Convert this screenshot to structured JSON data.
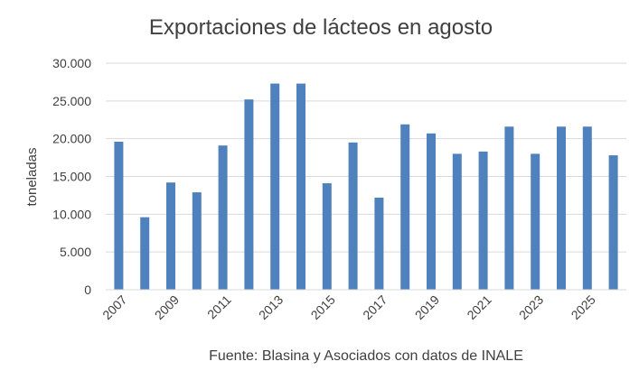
{
  "chart_data": {
    "type": "bar",
    "title": "Exportaciones de lácteos en agosto",
    "ylabel": "toneladas",
    "xlabel": "",
    "source": "Fuente: Blasina y Asociados con datos de INALE",
    "ylim": [
      0,
      30000
    ],
    "yticks": [
      "0",
      "5.000",
      "10.000",
      "15.000",
      "20.000",
      "25.000",
      "30.000"
    ],
    "ytick_values": [
      0,
      5000,
      10000,
      15000,
      20000,
      25000,
      30000
    ],
    "categories": [
      "2007",
      "2008",
      "2009",
      "2010",
      "2011",
      "2012",
      "2013",
      "2014",
      "2015",
      "2016",
      "2017",
      "2018",
      "2019",
      "2020",
      "2021",
      "2022",
      "2023",
      "2024",
      "2025",
      "2026"
    ],
    "xtick_labels": [
      "2007",
      "2009",
      "2011",
      "2013",
      "2015",
      "2017",
      "2019",
      "2021",
      "2023",
      "2025"
    ],
    "values": [
      19600,
      9600,
      14200,
      12900,
      19100,
      25200,
      27300,
      27300,
      14100,
      19500,
      12200,
      21900,
      20700,
      18000,
      18300,
      21600,
      18000,
      21600,
      21600,
      17800
    ],
    "bar_color": "#4f81bd",
    "grid": true,
    "legend": false
  }
}
